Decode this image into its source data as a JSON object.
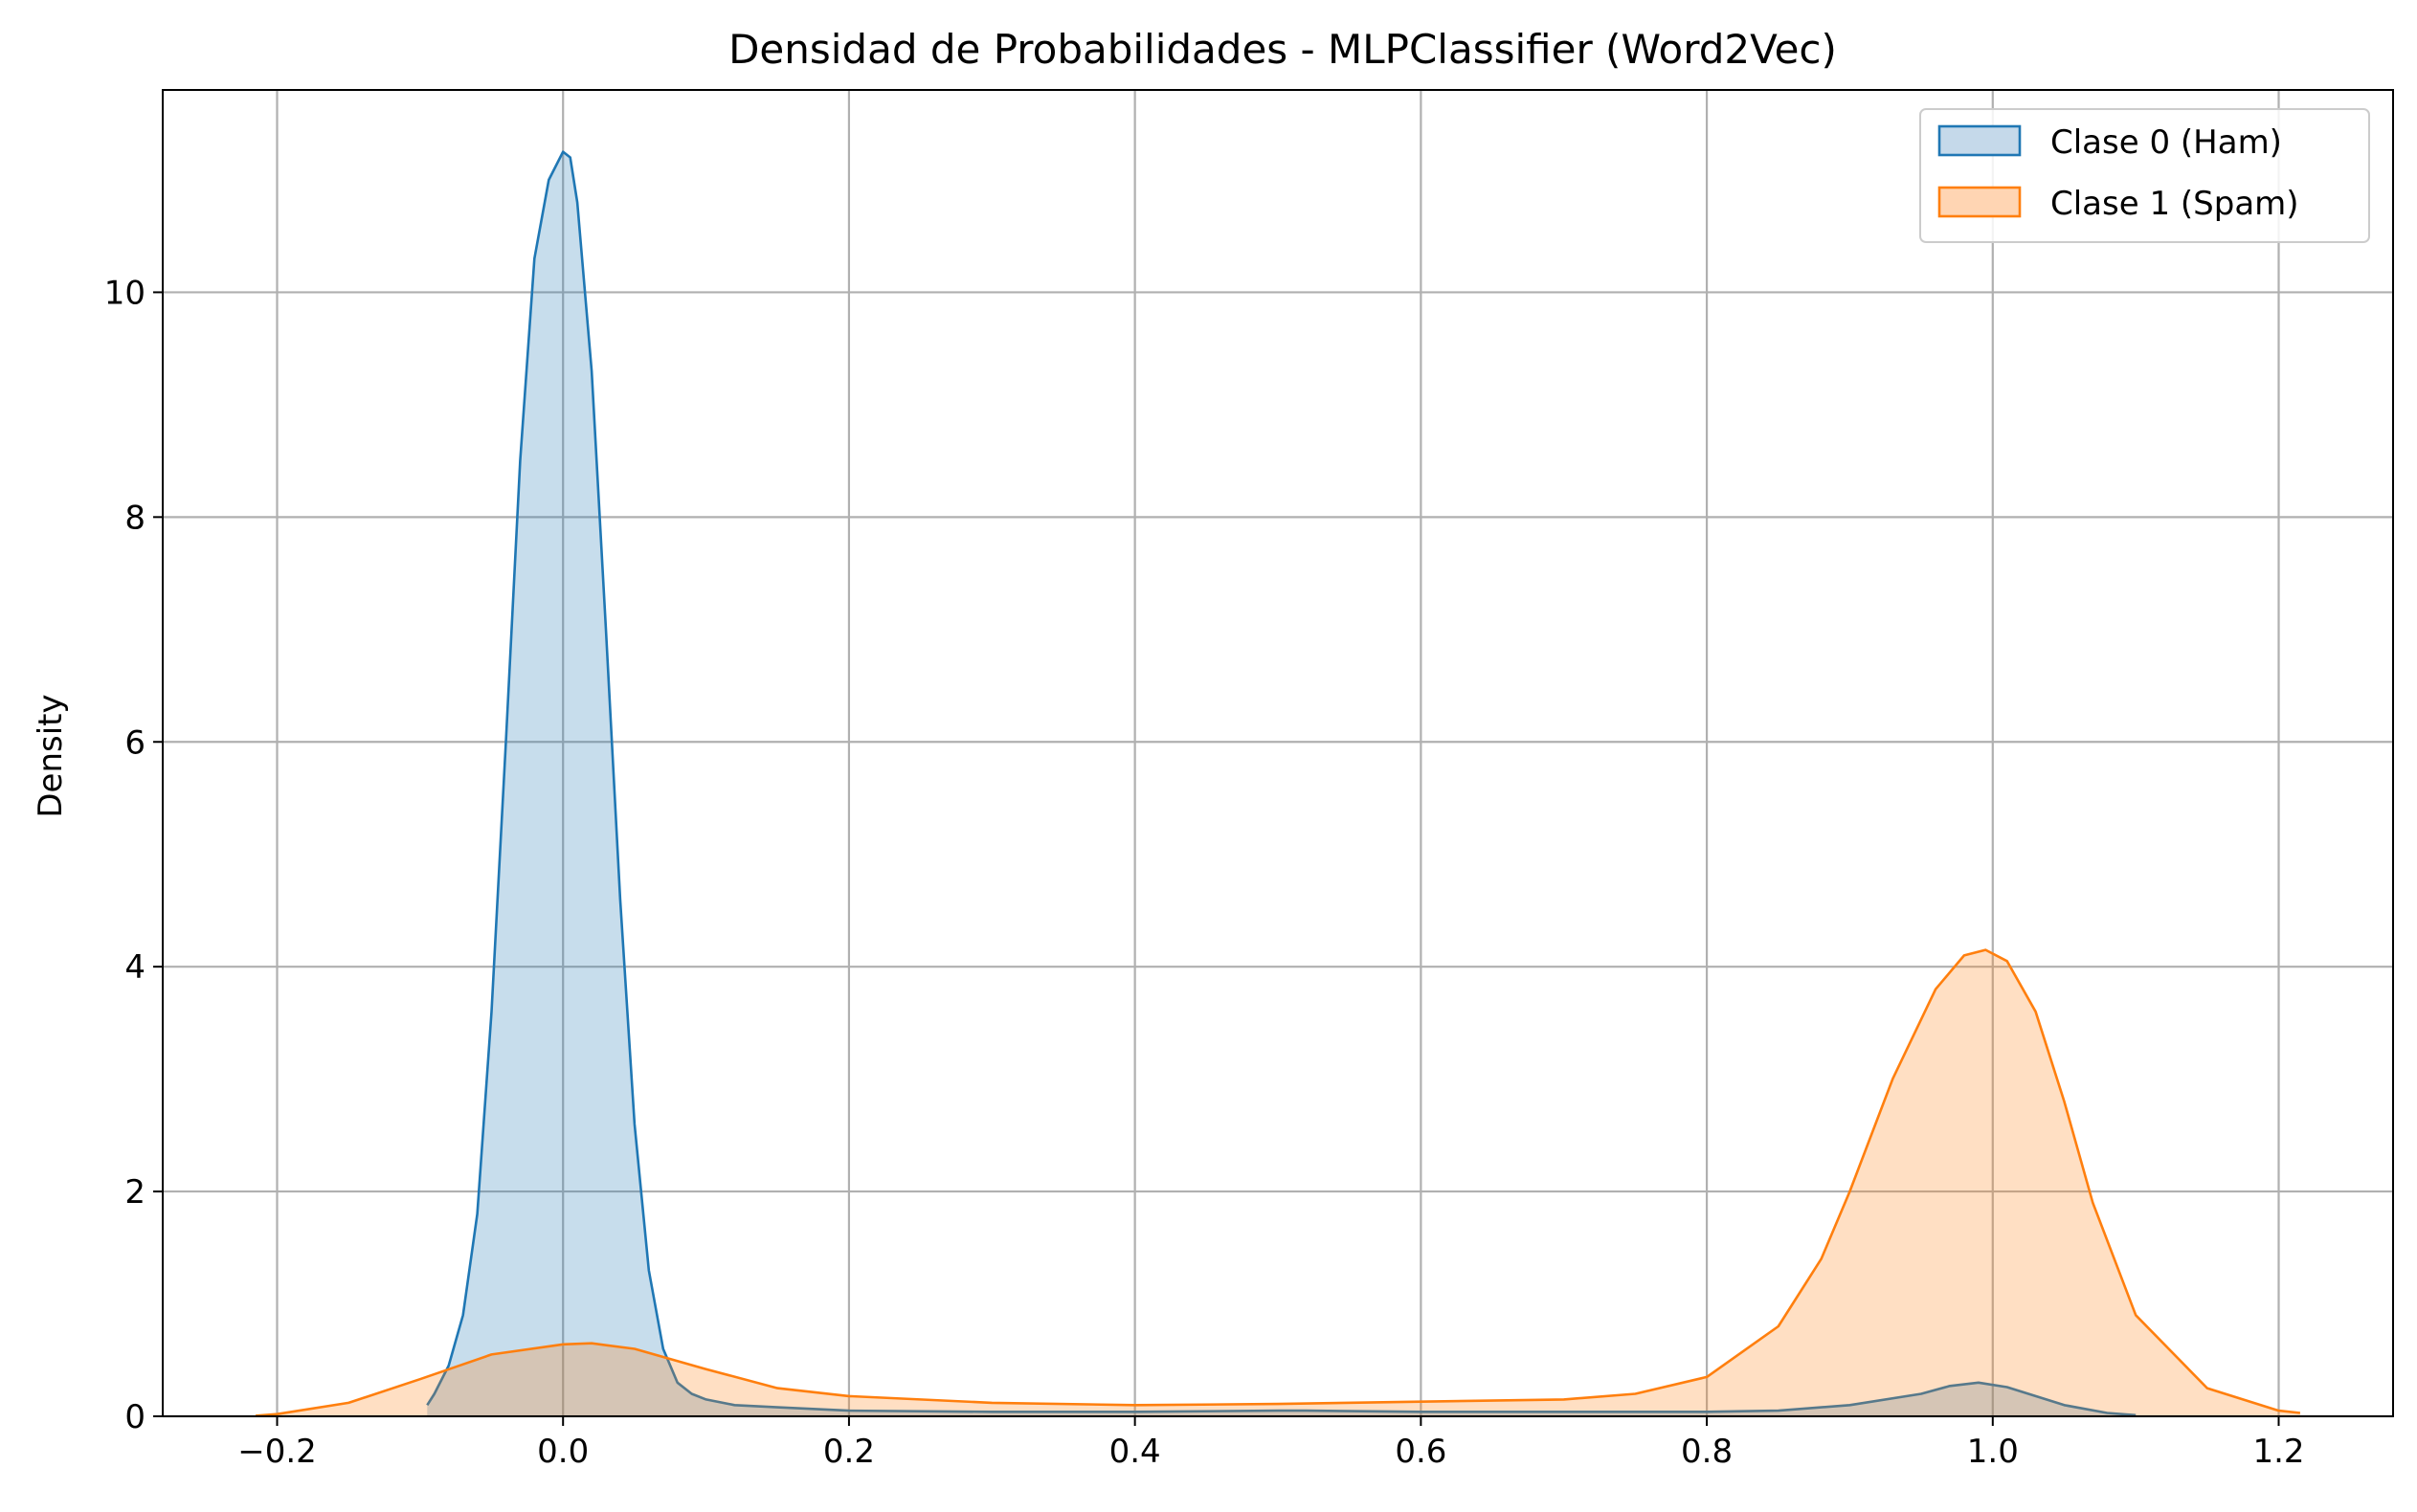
{
  "chart_data": {
    "type": "area",
    "title": "Densidad de Probabilidades - MLPClassifier (Word2Vec)",
    "xlabel": "",
    "ylabel": "Density",
    "xlim": [
      -0.28,
      1.28
    ],
    "ylim": [
      0,
      11.8
    ],
    "x_ticks": [
      -0.2,
      0.0,
      0.2,
      0.4,
      0.6,
      0.8,
      1.0,
      1.2
    ],
    "x_tick_labels": [
      "−0.2",
      "0.0",
      "0.2",
      "0.4",
      "0.6",
      "0.8",
      "1.0",
      "1.2"
    ],
    "y_ticks": [
      0,
      2,
      4,
      6,
      8,
      10
    ],
    "y_tick_labels": [
      "0",
      "2",
      "4",
      "6",
      "8",
      "10"
    ],
    "grid": true,
    "legend_position": "top-right",
    "series": [
      {
        "name": "Clase 0 (Ham)",
        "color": "#1f77b4",
        "fill_color": "#c5d9ea",
        "x": [
          -0.095,
          -0.09,
          -0.08,
          -0.07,
          -0.06,
          -0.05,
          -0.04,
          -0.03,
          -0.02,
          -0.01,
          0.0,
          0.005,
          0.01,
          0.02,
          0.03,
          0.04,
          0.05,
          0.06,
          0.07,
          0.08,
          0.09,
          0.1,
          0.12,
          0.15,
          0.2,
          0.3,
          0.4,
          0.5,
          0.52,
          0.6,
          0.7,
          0.8,
          0.85,
          0.9,
          0.95,
          0.97,
          0.99,
          1.01,
          1.03,
          1.05,
          1.08,
          1.1
        ],
        "values": [
          0.1,
          0.2,
          0.45,
          0.9,
          1.8,
          3.6,
          6.0,
          8.5,
          10.3,
          11.0,
          11.25,
          11.2,
          10.8,
          9.3,
          7.0,
          4.6,
          2.6,
          1.3,
          0.6,
          0.3,
          0.2,
          0.15,
          0.1,
          0.08,
          0.05,
          0.04,
          0.04,
          0.05,
          0.05,
          0.04,
          0.04,
          0.04,
          0.05,
          0.1,
          0.2,
          0.27,
          0.3,
          0.26,
          0.18,
          0.1,
          0.03,
          0.01
        ]
      },
      {
        "name": "Clase 1 (Spam)",
        "color": "#ff7f0e",
        "fill_color": "#ffd5b3",
        "x": [
          -0.215,
          -0.2,
          -0.15,
          -0.1,
          -0.05,
          0.0,
          0.02,
          0.05,
          0.1,
          0.15,
          0.2,
          0.3,
          0.4,
          0.5,
          0.6,
          0.7,
          0.75,
          0.8,
          0.85,
          0.88,
          0.9,
          0.93,
          0.96,
          0.98,
          0.995,
          1.01,
          1.03,
          1.05,
          1.07,
          1.1,
          1.15,
          1.2,
          1.215
        ],
        "values": [
          0.005,
          0.02,
          0.12,
          0.33,
          0.55,
          0.64,
          0.65,
          0.6,
          0.42,
          0.25,
          0.18,
          0.12,
          0.1,
          0.11,
          0.13,
          0.15,
          0.2,
          0.35,
          0.8,
          1.4,
          2.0,
          3.0,
          3.8,
          4.1,
          4.15,
          4.05,
          3.6,
          2.8,
          1.9,
          0.9,
          0.25,
          0.05,
          0.03
        ]
      }
    ]
  }
}
